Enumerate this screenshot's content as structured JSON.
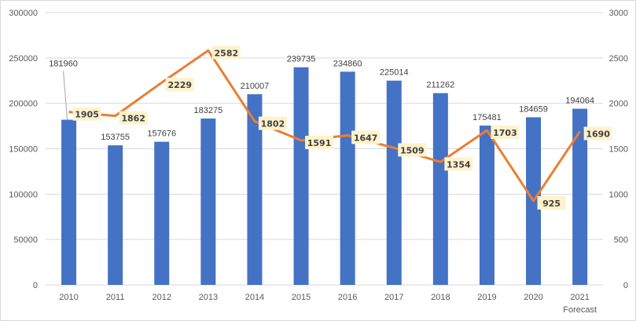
{
  "chart_data": {
    "type": "bar+line",
    "categories": [
      "2010",
      "2011",
      "2012",
      "2013",
      "2014",
      "2015",
      "2016",
      "2017",
      "2018",
      "2019",
      "2020",
      "2021"
    ],
    "category_sublabels": {
      "2021": "Forecast"
    },
    "series": [
      {
        "type": "bar",
        "axis": "left",
        "color": "#4472c4",
        "values": [
          181960,
          153755,
          157676,
          183275,
          210007,
          239735,
          234860,
          225014,
          211262,
          175481,
          184659,
          194064
        ]
      },
      {
        "type": "line",
        "axis": "right",
        "color": "#ed7d31",
        "label_bg": "#fff2cc",
        "values": [
          1905,
          1862,
          2229,
          2582,
          1802,
          1591,
          1647,
          1509,
          1354,
          1703,
          925,
          1690
        ]
      }
    ],
    "left_axis": {
      "ylim": [
        0,
        300000
      ],
      "ticks": [
        "0",
        "50000",
        "100000",
        "150000",
        "200000",
        "250000",
        "300000"
      ]
    },
    "right_axis": {
      "ylim": [
        0,
        3000
      ],
      "ticks": [
        "0",
        "500",
        "1000",
        "1500",
        "2000",
        "2500",
        "3000"
      ]
    },
    "grid": true
  }
}
